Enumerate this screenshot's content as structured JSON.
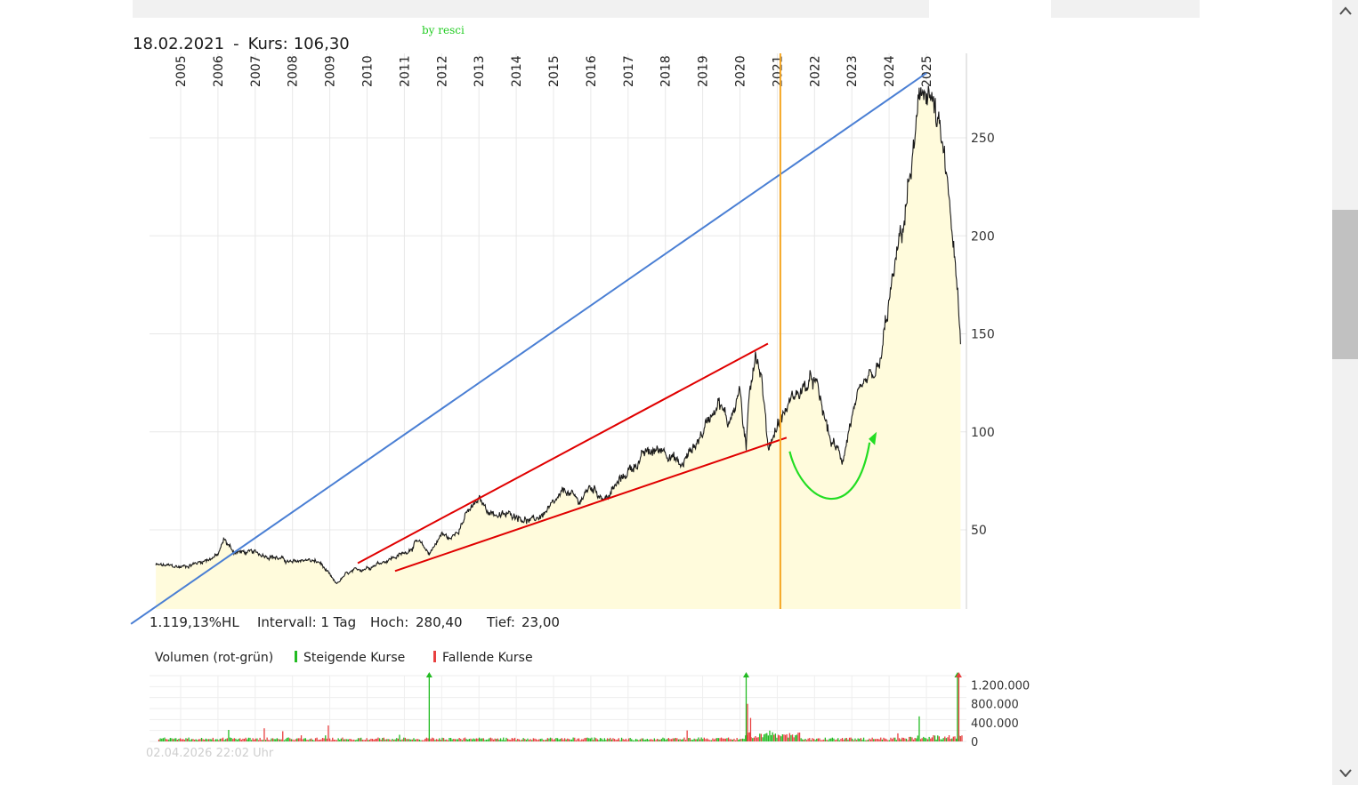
{
  "header": {
    "date": "18.02.2021",
    "separator": "-",
    "kurs_label": "Kurs:",
    "kurs_value": "106,30",
    "author": "by resci",
    "timestamp": "02.04.2026 22:02 Uhr"
  },
  "stats": {
    "performance": "1.119,13%HL",
    "interval": "Intervall: 1 Tag",
    "high_label": "Hoch:",
    "high_value": "280,40",
    "low_label": "Tief:",
    "low_value": "23,00"
  },
  "volume_legend": {
    "title": "Volumen (rot-grün)",
    "rising": "Steigende Kurse",
    "falling": "Fallende Kurse"
  },
  "colors": {
    "price_line": "#1a1a1a",
    "area_fill": "#fffbdc",
    "trend_blue": "#4a7fd4",
    "trend_red": "#e00000",
    "arrow_green": "#22dd22",
    "marker_orange": "#f5a623",
    "volume_up": "#22bb22",
    "volume_down": "#e84040",
    "grid": "#e8e8e8"
  },
  "chart_data": [
    {
      "type": "line",
      "series": [
        {
          "x": [
            "2004-05",
            "2005-01",
            "2005-06",
            "2006-01",
            "2006-03",
            "2006-06",
            "2007-01",
            "2007-06",
            "2008-01",
            "2008-05",
            "2008-10",
            "2009-03",
            "2009-06",
            "2010-01",
            "2010-06",
            "2011-01",
            "2011-05",
            "2011-09",
            "2012-01",
            "2012-04",
            "2012-09",
            "2013-01",
            "2013-04",
            "2013-08",
            "2014-01",
            "2014-06",
            "2015-01",
            "2015-05",
            "2015-09",
            "2016-01",
            "2016-06",
            "2017-01",
            "2017-06",
            "2018-01",
            "2018-06",
            "2019-01",
            "2019-06",
            "2019-09",
            "2020-01",
            "2020-03",
            "2020-04",
            "2020-06",
            "2020-08",
            "2020-10",
            "2021-01",
            "2021-02",
            "2021-06",
            "2022-01",
            "2022-06",
            "2022-10",
            "2023-01",
            "2023-06",
            "2023-10",
            "2024-01",
            "2024-06",
            "2024-10",
            "2025-01",
            "2025-03",
            "2025-06",
            "2025-09",
            "2025-11",
            "2025-12"
          ],
          "y": [
            32,
            31,
            33,
            37,
            45,
            39,
            38,
            37,
            33,
            35,
            33,
            22,
            27,
            31,
            34,
            38,
            44,
            38,
            48,
            45,
            58,
            65,
            60,
            57,
            58,
            54,
            62,
            70,
            64,
            72,
            66,
            80,
            88,
            92,
            82,
            100,
            118,
            104,
            122,
            88,
            120,
            144,
            128,
            92,
            104,
            106,
            118,
            126,
            96,
            86,
            108,
            124,
            132,
            166,
            210,
            256,
            279,
            268,
            244,
            208,
            168,
            142
          ]
        }
      ],
      "title": "",
      "xlabel": "",
      "ylabel": "",
      "xticks": [
        "2005",
        "2006",
        "2007",
        "2008",
        "2009",
        "2010",
        "2011",
        "2012",
        "2013",
        "2014",
        "2015",
        "2016",
        "2017",
        "2018",
        "2019",
        "2020",
        "2021",
        "2022",
        "2023",
        "2024",
        "2025"
      ],
      "yticks": [
        "50",
        "100",
        "150",
        "200",
        "250"
      ],
      "ylim": [
        10,
        290
      ],
      "grid": true,
      "legend": "none",
      "annotations": [
        {
          "kind": "trendline",
          "color": "blue",
          "from": [
            "2003-09",
            2
          ],
          "to": [
            "2025-01",
            283
          ]
        },
        {
          "kind": "trendline",
          "color": "red",
          "from": [
            "2009-10",
            33
          ],
          "to": [
            "2020-10",
            145
          ]
        },
        {
          "kind": "trendline",
          "color": "red",
          "from": [
            "2010-10",
            29
          ],
          "to": [
            "2021-04",
            97
          ]
        },
        {
          "kind": "vertical_marker",
          "color": "orange",
          "x": "2021-02"
        },
        {
          "kind": "curved_arrow",
          "color": "green",
          "from": [
            "2021-05",
            90
          ],
          "to": [
            "2023-09",
            100
          ]
        }
      ]
    },
    {
      "type": "bar",
      "title": "",
      "xlabel": "",
      "ylabel": "",
      "yticks": [
        "0",
        "400.000",
        "800.000",
        "1.200.000"
      ],
      "ylim": [
        0,
        1400000
      ],
      "legend": "top-left",
      "series": [
        {
          "name": "Steigende Kurse",
          "x": [
            "2011-09",
            "2020-03",
            "2025-11"
          ],
          "values": [
            1400000,
            1400000,
            1400000
          ]
        },
        {
          "name": "Fallende Kurse",
          "x": [
            "2020-03",
            "2020-04",
            "2025-11"
          ],
          "values": [
            800000,
            500000,
            1400000
          ]
        }
      ],
      "baseline_typical": 50000
    }
  ]
}
